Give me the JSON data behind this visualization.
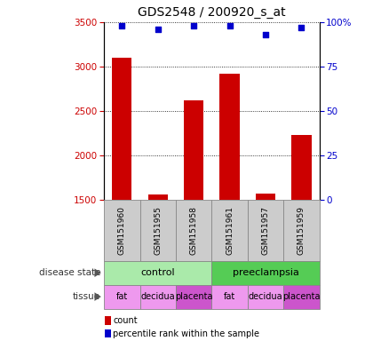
{
  "title": "GDS2548 / 200920_s_at",
  "samples": [
    "GSM151960",
    "GSM151955",
    "GSM151958",
    "GSM151961",
    "GSM151957",
    "GSM151959"
  ],
  "bar_values": [
    3100,
    1560,
    2620,
    2920,
    1570,
    2230
  ],
  "percentile_values": [
    98,
    96,
    98,
    98,
    93,
    97
  ],
  "ylim_left": [
    1500,
    3500
  ],
  "ylim_right": [
    0,
    100
  ],
  "yticks_left": [
    1500,
    2000,
    2500,
    3000,
    3500
  ],
  "yticks_right": [
    0,
    25,
    50,
    75,
    100
  ],
  "bar_color": "#cc0000",
  "percentile_color": "#0000cc",
  "disease_state_labels": [
    "control",
    "preeclampsia"
  ],
  "disease_state_colors": [
    "#aaeaaa",
    "#55cc55"
  ],
  "tissue_labels": [
    "fat",
    "decidua",
    "placenta",
    "fat",
    "decidua",
    "placenta"
  ],
  "tissue_colors": [
    "#ee99ee",
    "#ee99ee",
    "#cc55cc",
    "#ee99ee",
    "#ee99ee",
    "#cc55cc"
  ],
  "sample_box_color": "#cccccc",
  "title_fontsize": 10,
  "tick_fontsize": 7.5,
  "sample_fontsize": 6.5,
  "row_label_fontsize": 7.5,
  "tissue_fontsize": 7,
  "legend_fontsize": 7
}
